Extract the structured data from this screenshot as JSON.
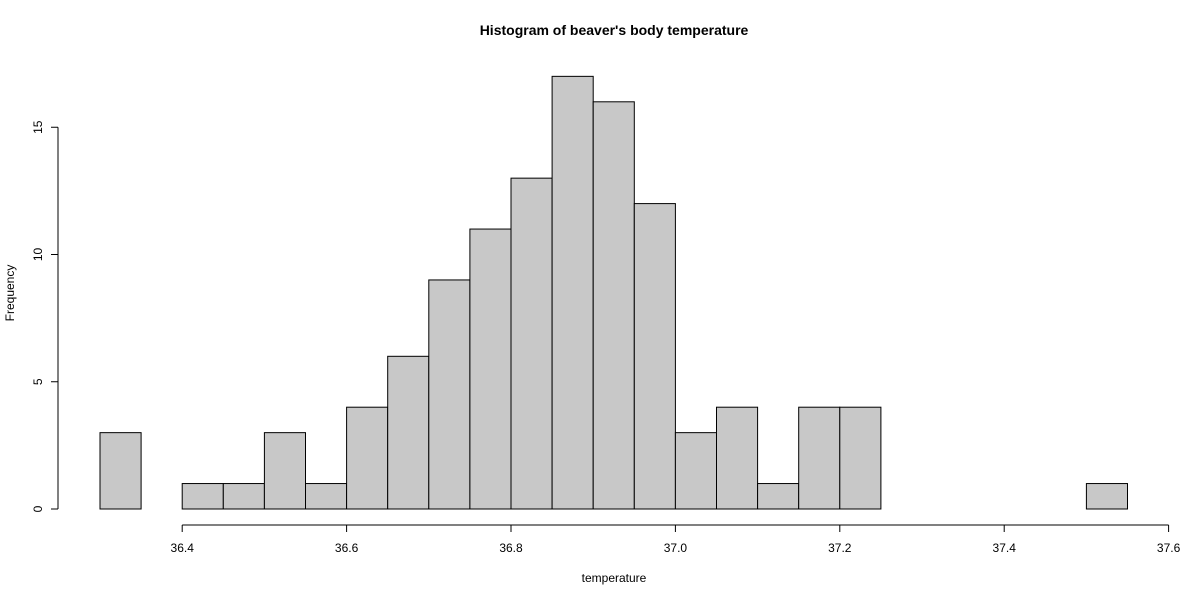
{
  "chart_data": {
    "type": "bar",
    "title": "Histogram of beaver's body temperature",
    "xlabel": "temperature",
    "ylabel": "Frequency",
    "bin_width": 0.05,
    "bins": [
      {
        "start": 36.3,
        "end": 36.35,
        "count": 3
      },
      {
        "start": 36.35,
        "end": 36.4,
        "count": 0
      },
      {
        "start": 36.4,
        "end": 36.45,
        "count": 1
      },
      {
        "start": 36.45,
        "end": 36.5,
        "count": 1
      },
      {
        "start": 36.5,
        "end": 36.55,
        "count": 3
      },
      {
        "start": 36.55,
        "end": 36.6,
        "count": 1
      },
      {
        "start": 36.6,
        "end": 36.65,
        "count": 4
      },
      {
        "start": 36.65,
        "end": 36.7,
        "count": 6
      },
      {
        "start": 36.7,
        "end": 36.75,
        "count": 9
      },
      {
        "start": 36.75,
        "end": 36.8,
        "count": 11
      },
      {
        "start": 36.8,
        "end": 36.85,
        "count": 13
      },
      {
        "start": 36.85,
        "end": 36.9,
        "count": 17
      },
      {
        "start": 36.9,
        "end": 36.95,
        "count": 16
      },
      {
        "start": 36.95,
        "end": 37.0,
        "count": 12
      },
      {
        "start": 37.0,
        "end": 37.05,
        "count": 3
      },
      {
        "start": 37.05,
        "end": 37.1,
        "count": 4
      },
      {
        "start": 37.1,
        "end": 37.15,
        "count": 1
      },
      {
        "start": 37.15,
        "end": 37.2,
        "count": 4
      },
      {
        "start": 37.2,
        "end": 37.25,
        "count": 4
      },
      {
        "start": 37.25,
        "end": 37.3,
        "count": 0
      },
      {
        "start": 37.3,
        "end": 37.35,
        "count": 0
      },
      {
        "start": 37.35,
        "end": 37.4,
        "count": 0
      },
      {
        "start": 37.4,
        "end": 37.45,
        "count": 0
      },
      {
        "start": 37.45,
        "end": 37.5,
        "count": 0
      },
      {
        "start": 37.5,
        "end": 37.55,
        "count": 1
      }
    ],
    "xlim": [
      36.3,
      37.55
    ],
    "ylim": [
      0,
      17
    ],
    "x_ticks": [
      "36.4",
      "36.6",
      "36.8",
      "37.0",
      "37.2",
      "37.4",
      "37.6"
    ],
    "x_tick_range": [
      36.4,
      37.6
    ],
    "y_ticks": [
      "0",
      "5",
      "10",
      "15"
    ],
    "y_tick_range": [
      0,
      15
    ],
    "grid": false,
    "legend": "none",
    "colors": {
      "bar_fill": "#c8c8c8",
      "bar_stroke": "#000000"
    }
  }
}
